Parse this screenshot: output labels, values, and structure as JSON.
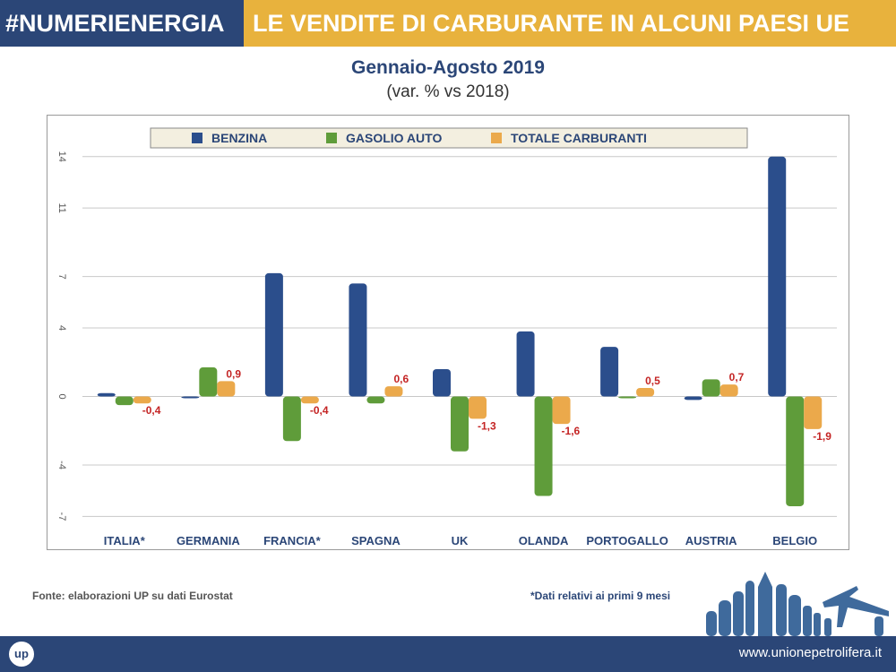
{
  "header": {
    "hashtag": "#NUMERIENERGIA",
    "title": "LE VENDITE DI CARBURANTE IN ALCUNI PAESI UE"
  },
  "chart_data": {
    "type": "bar",
    "title": "Gennaio-Agosto 2019",
    "subtitle": "(var. % vs 2018)",
    "categories": [
      "ITALIA*",
      "GERMANIA",
      "FRANCIA*",
      "SPAGNA",
      "UK",
      "OLANDA",
      "PORTOGALLO",
      "AUSTRIA",
      "BELGIO"
    ],
    "series": [
      {
        "name": "BENZINA",
        "color": "#2b4e8c",
        "values": [
          0.2,
          -0.1,
          7.2,
          6.6,
          1.6,
          3.8,
          2.9,
          -0.2,
          14.0
        ]
      },
      {
        "name": "GASOLIO AUTO",
        "color": "#5f9c3a",
        "values": [
          -0.5,
          1.7,
          -2.6,
          -0.4,
          -3.2,
          -5.8,
          -0.1,
          1.0,
          -6.4
        ]
      },
      {
        "name": "TOTALE CARBURANTI",
        "color": "#eba94b",
        "values": [
          -0.4,
          0.9,
          -0.4,
          0.6,
          -1.3,
          -1.6,
          0.5,
          0.7,
          -1.9
        ]
      }
    ],
    "data_labels": [
      "-0,4",
      "0,9",
      "-0,4",
      "0,6",
      "-1,3",
      "-1,6",
      "0,5",
      "0,7",
      "-1,9"
    ],
    "yticks": [
      14,
      11,
      7,
      4,
      0,
      -4,
      -7
    ],
    "ylim": [
      -7.5,
      15.4
    ],
    "legend_position": "top",
    "grid": true
  },
  "footer": {
    "source": "Fonte: elaborazioni UP su dati Eurostat",
    "note": "*Dati relativi ai primi 9 mesi",
    "website": "www.unionepetrolifera.it",
    "logo_text": "up"
  }
}
